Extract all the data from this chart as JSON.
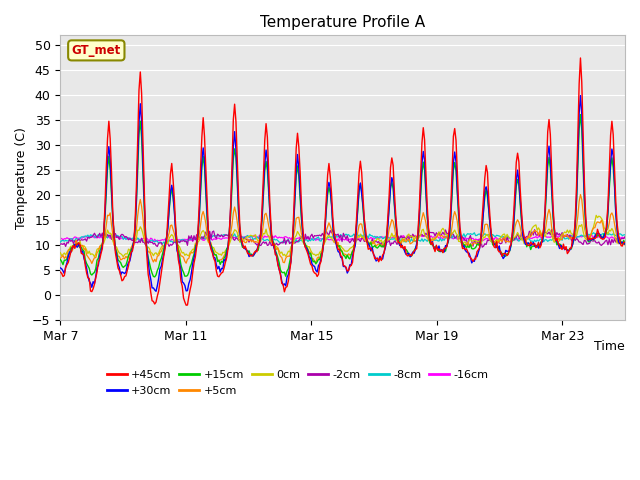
{
  "title": "Temperature Profile A",
  "xlabel": "Time",
  "ylabel": "Temperature (C)",
  "ylim": [
    -5,
    52
  ],
  "yticks": [
    -5,
    0,
    5,
    10,
    15,
    20,
    25,
    30,
    35,
    40,
    45,
    50
  ],
  "xtick_labels": [
    "Mar 7",
    "Mar 11",
    "Mar 15",
    "Mar 19",
    "Mar 23"
  ],
  "series_colors": {
    "+45cm": "#ff0000",
    "+30cm": "#0000ff",
    "+15cm": "#00cc00",
    "+5cm": "#ff8800",
    "0cm": "#cccc00",
    "-2cm": "#aa00aa",
    "-8cm": "#00cccc",
    "-16cm": "#ff00ff"
  },
  "legend_box_color": "#ffffcc",
  "legend_box_edge": "#888800",
  "legend_text": "GT_met",
  "legend_text_color": "#cc0000",
  "background_color": "#ffffff",
  "plot_bg_color": "#e8e8e8",
  "grid_color": "#ffffff",
  "title_fontsize": 11,
  "axis_label_fontsize": 9,
  "tick_label_fontsize": 9
}
